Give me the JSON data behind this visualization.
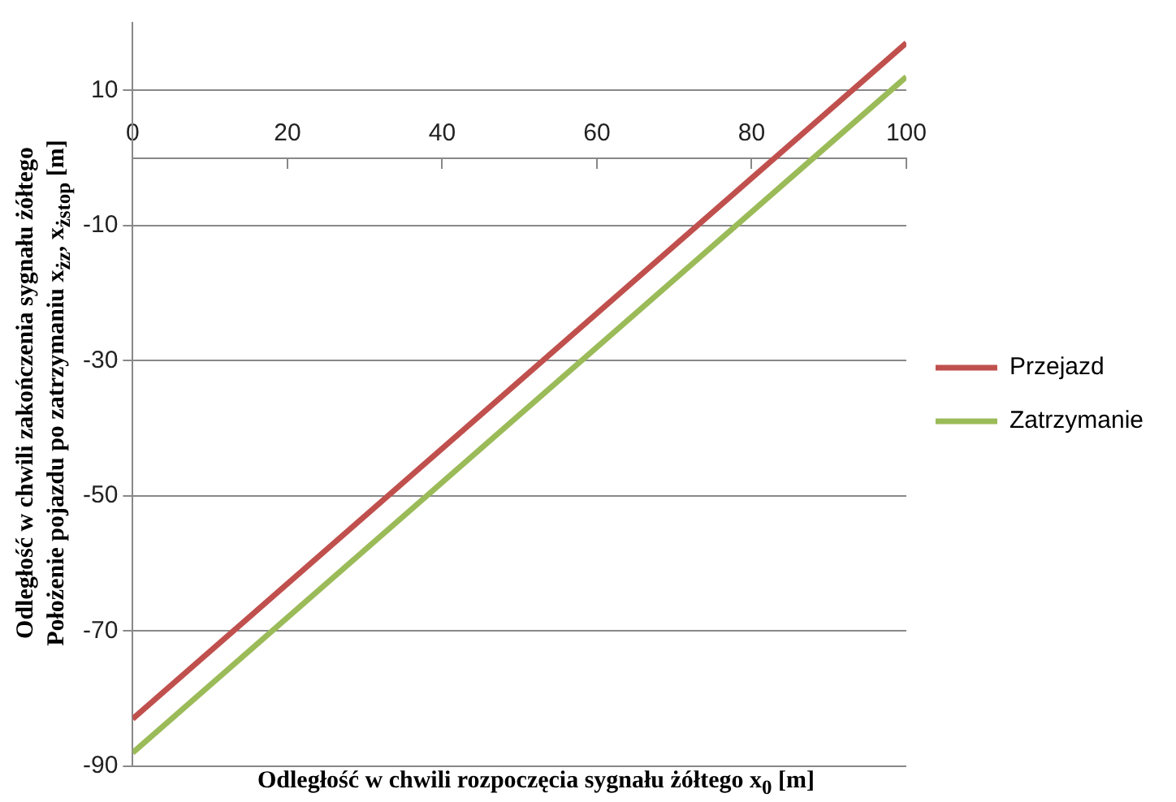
{
  "chart_data": {
    "type": "line",
    "xlabel": "Odległość w chwili rozpoczęcia sygnału żółtego x$_{0}$ [m]",
    "ylabel": "Odległość w chwili zakończenia sygnału żółtego\nPołożenie pojazdu po zatrzymaniu x$_{żz}$, x$_{żstop}$ [m]",
    "x": [
      0,
      100
    ],
    "series": [
      {
        "name": "Przejazd",
        "color": "#c0504d",
        "values": [
          -83,
          17
        ]
      },
      {
        "name": "Zatrzymanie",
        "color": "#9bbb59",
        "values": [
          -88,
          12
        ]
      }
    ],
    "xlim": [
      0,
      100
    ],
    "xticks": [
      0,
      20,
      40,
      60,
      80,
      100
    ],
    "ylim": [
      -90,
      20
    ],
    "yticks": [
      -90,
      -70,
      -50,
      -30,
      -10,
      10
    ],
    "grid": "y",
    "legend": "right",
    "marker": "none",
    "line_style": "solid"
  }
}
